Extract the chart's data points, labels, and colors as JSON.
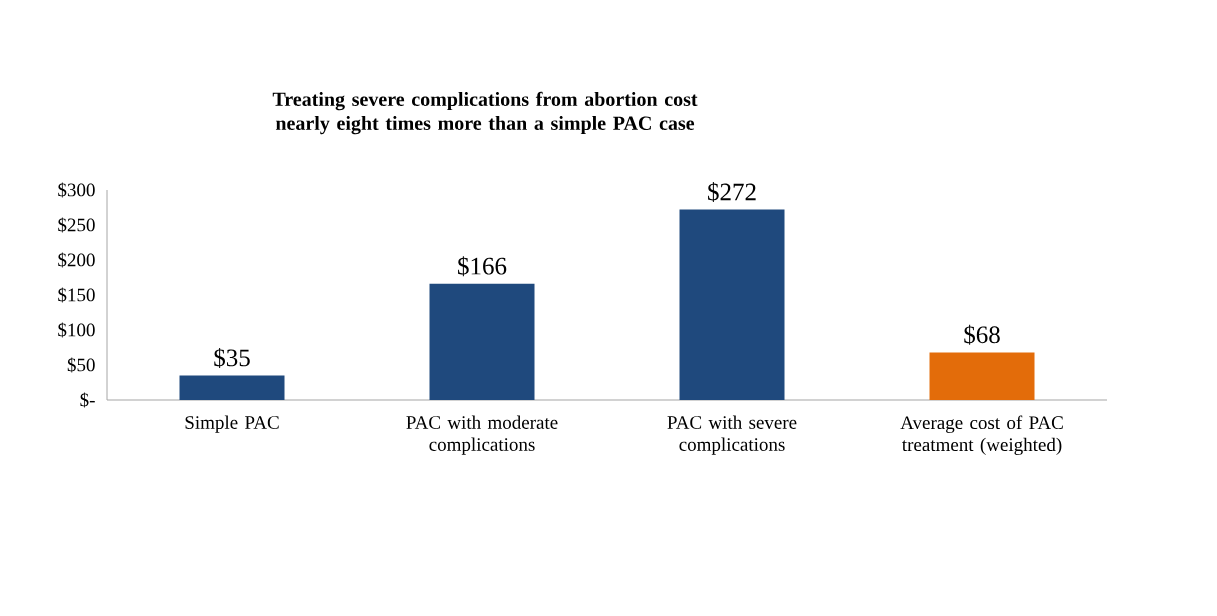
{
  "chart_data": {
    "type": "bar",
    "title": "Treating severe complications from abortion cost nearly eight times more than a simple PAC case",
    "categories": [
      "Simple PAC",
      "PAC with moderate complications",
      "PAC with severe complications",
      "Average cost of PAC treatment (weighted)"
    ],
    "values": [
      35,
      166,
      272,
      68
    ],
    "colors": [
      "#1f497d",
      "#1f497d",
      "#1f497d",
      "#e36c0a"
    ],
    "value_labels": [
      "$35",
      "$166",
      "$272",
      "$68"
    ],
    "ylim": [
      0,
      300
    ],
    "yticks": [
      {
        "value": 0,
        "label": "$-"
      },
      {
        "value": 50,
        "label": "$50"
      },
      {
        "value": 100,
        "label": "$100"
      },
      {
        "value": 150,
        "label": "$150"
      },
      {
        "value": 200,
        "label": "$200"
      },
      {
        "value": 250,
        "label": "$250"
      },
      {
        "value": 300,
        "label": "$300"
      }
    ],
    "grid": false
  }
}
